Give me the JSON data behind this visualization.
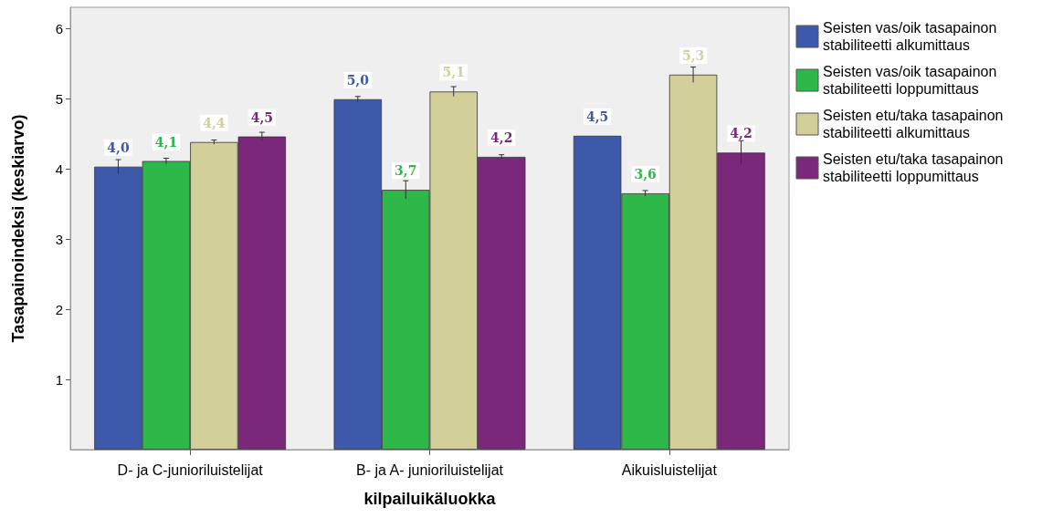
{
  "chart_data": {
    "type": "bar",
    "xlabel": "kilpailuikäluokka",
    "ylabel": "Tasapainoindeksi (keskiarvo)",
    "categories": [
      "D- ja C-junioriluistelijat",
      "B- ja A- junioriluistelijat",
      "Aikuisluistelijat"
    ],
    "series": [
      {
        "name": "Seisten vas/oik tasapainon stabiliteetti alkumittaus",
        "color": "#3f59aa",
        "values": [
          4.03,
          4.99,
          4.47
        ],
        "errors": [
          0.1,
          0.04,
          null
        ],
        "value_labels": [
          "4,0",
          "5,0",
          "4,5"
        ]
      },
      {
        "name": "Seisten vas/oik tasapainon stabiliteetti loppumittaus",
        "color": "#2fb84a",
        "values": [
          4.11,
          3.7,
          3.65
        ],
        "errors": [
          0.04,
          0.13,
          0.04
        ],
        "value_labels": [
          "4,1",
          "3,7",
          "3,6"
        ]
      },
      {
        "name": "Seisten etu/taka tasapainon stabiliteetti alkumittaus",
        "color": "#d3cf98",
        "values": [
          4.38,
          5.1,
          5.34
        ],
        "errors": [
          0.03,
          0.07,
          0.11
        ],
        "value_labels": [
          "4,4",
          "5,1",
          "5,3"
        ]
      },
      {
        "name": "Seisten etu/taka tasapainon stabiliteetti loppumittaus",
        "color": "#7b287b",
        "values": [
          4.46,
          4.17,
          4.23
        ],
        "errors": [
          0.06,
          0.03,
          0.17
        ],
        "value_labels": [
          "4,5",
          "4,2",
          "4,2"
        ]
      }
    ],
    "ylim": [
      0,
      6.3
    ],
    "yticks": [
      1,
      2,
      3,
      4,
      5,
      6
    ],
    "grid": false,
    "legend": "top right"
  }
}
